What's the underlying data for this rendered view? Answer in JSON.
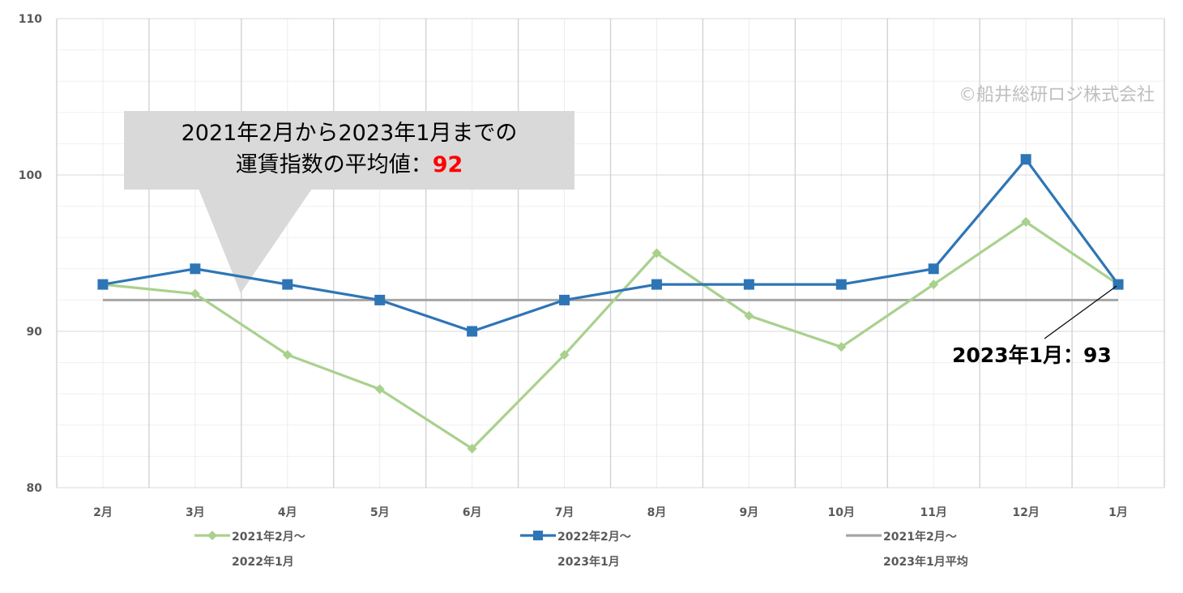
{
  "chart_data": {
    "type": "line",
    "categories": [
      "2月",
      "3月",
      "4月",
      "5月",
      "6月",
      "7月",
      "8月",
      "9月",
      "10月",
      "11月",
      "12月",
      "1月"
    ],
    "ylim": [
      80,
      110
    ],
    "y_ticks": [
      80,
      90,
      100,
      110
    ],
    "grid": true,
    "legend_position": "bottom",
    "series": [
      {
        "name_line1": "2021年2月～",
        "name_line2": "2022年1月",
        "color": "#a9d18e",
        "marker": "diamond",
        "values": [
          93,
          92.4,
          88.5,
          86.3,
          82.5,
          88.5,
          95,
          91,
          89,
          93,
          97,
          93
        ]
      },
      {
        "name_line1": "2022年2月～",
        "name_line2": "2023年1月",
        "color": "#2e75b6",
        "marker": "square",
        "values": [
          93,
          94,
          93,
          92,
          90,
          92,
          93,
          93,
          93,
          94,
          101,
          93
        ]
      },
      {
        "name_line1": "2021年2月～",
        "name_line2": "2023年1月平均",
        "color": "#a6a6a6",
        "marker": "none",
        "values": [
          92,
          92,
          92,
          92,
          92,
          92,
          92,
          92,
          92,
          92,
          92,
          92
        ]
      }
    ],
    "annotations": {
      "average_callout_line1": "2021年2月から2023年1月までの",
      "average_callout_line2": "運賃指数の平均値：",
      "average_value": "92",
      "last_label": "2023年1月：",
      "last_value": "93"
    }
  },
  "copyright": "©船井総研ロジ株式会社",
  "colors": {
    "highlight": "#ff0000",
    "callout_bg": "#d9d9d9"
  }
}
